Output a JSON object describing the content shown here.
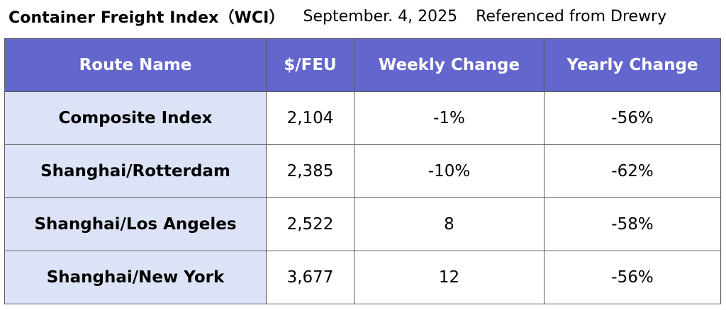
{
  "header": {
    "title": "Container Freight Index（WCI）",
    "date": "September. 4, 2025",
    "source": "Referenced from Drewry"
  },
  "table": {
    "columns": [
      "Route Name",
      "$/FEU",
      "Weekly Change",
      "Yearly Change"
    ],
    "rows": [
      {
        "route": "Composite Index",
        "price": "2,104",
        "weekly": "-1%",
        "yearly": "-56%"
      },
      {
        "route": "Shanghai/Rotterdam",
        "price": "2,385",
        "weekly": "-10%",
        "yearly": "-62%"
      },
      {
        "route": "Shanghai/Los Angeles",
        "price": "2,522",
        "weekly": "8",
        "yearly": "-58%"
      },
      {
        "route": "Shanghai/New York",
        "price": "3,677",
        "weekly": "12",
        "yearly": "-56%"
      }
    ]
  },
  "colors": {
    "header_bg": "#6366cc",
    "route_bg": "#dde3f6"
  }
}
